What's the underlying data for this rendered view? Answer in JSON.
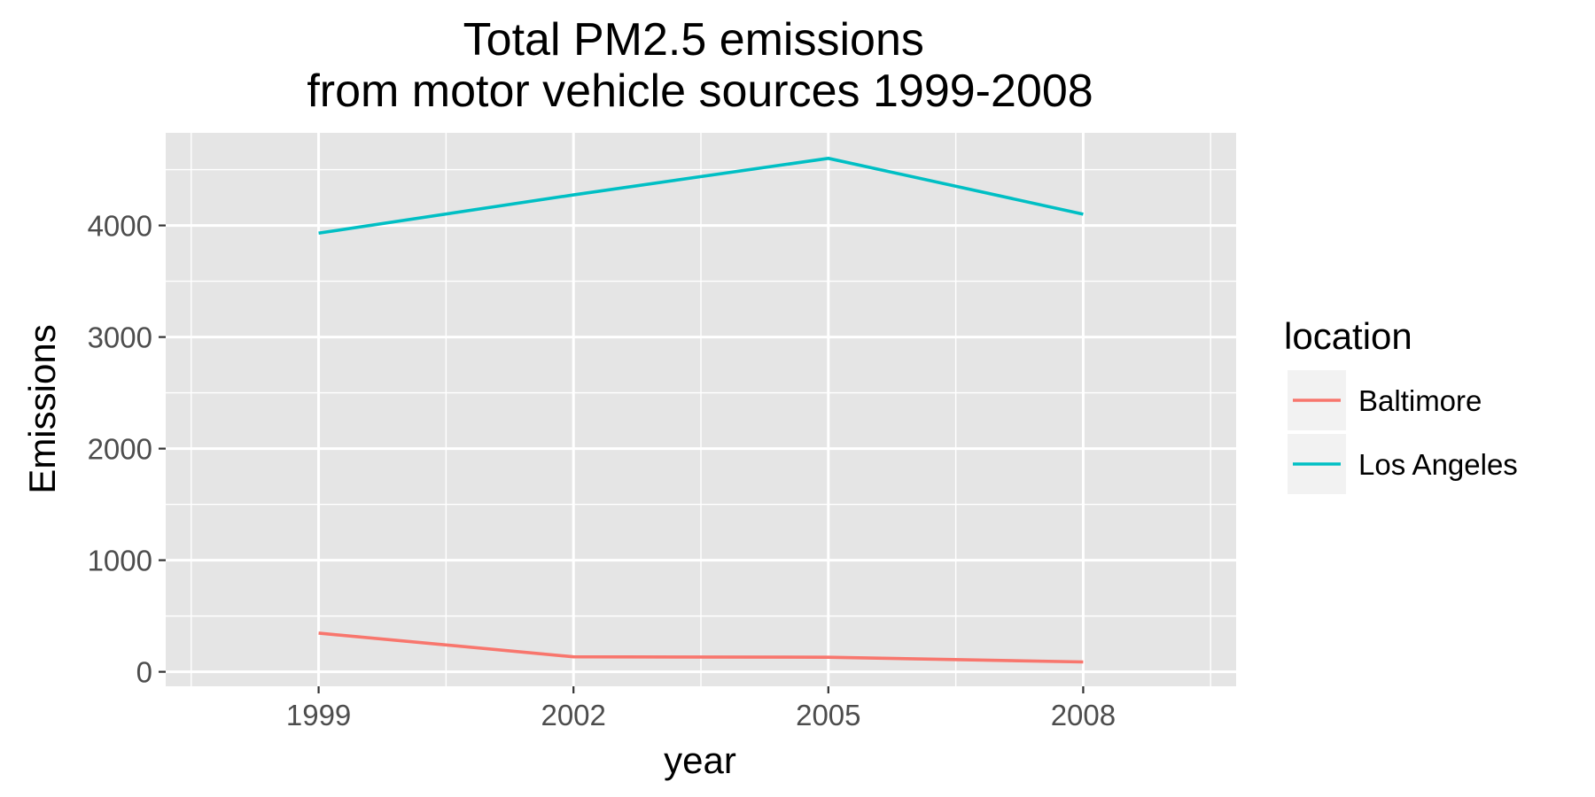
{
  "chart_data": {
    "type": "line",
    "title": "Total PM2.5 emissions\nfrom motor vehicle sources 1999-2008",
    "title_lines": [
      "Total PM2.5 emissions",
      "from motor vehicle sources 1999-2008"
    ],
    "xlabel": "year",
    "ylabel": "Emissions",
    "x": [
      1999,
      2002,
      2005,
      2008
    ],
    "x_ticks": [
      "1999",
      "2002",
      "2005",
      "2008"
    ],
    "xlim": [
      1997.2,
      2009.8
    ],
    "y_ticks": [
      "0",
      "1000",
      "2000",
      "3000",
      "4000"
    ],
    "y_tick_values": [
      0,
      1000,
      2000,
      3000,
      4000
    ],
    "ylim": [
      -130,
      4830
    ],
    "grid": true,
    "legend_position": "right",
    "legend_title": "location",
    "series": [
      {
        "name": "Baltimore",
        "values": [
          346.8,
          134.3,
          130.4,
          88.3
        ],
        "color": "#F8766D"
      },
      {
        "name": "Los Angeles",
        "values": [
          3931.1,
          4274.0,
          4601.4,
          4101.3
        ],
        "color": "#00BFC4"
      }
    ]
  },
  "colors": {
    "panel_background": "#E5E5E5",
    "grid_line": "#FFFFFF",
    "legend_key_background": "#F2F2F2",
    "tick_mark": "#333333"
  }
}
